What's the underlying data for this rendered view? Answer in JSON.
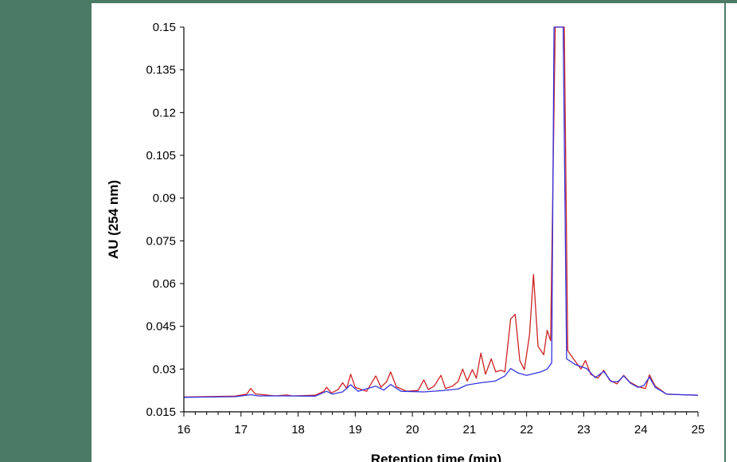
{
  "chart_data": {
    "type": "line",
    "xlabel": "Retention time  (min)",
    "ylabel": "AU (254 nm)",
    "xlim": [
      16,
      25
    ],
    "ylim": [
      0.015,
      0.15
    ],
    "x_ticks": [
      16,
      17,
      18,
      19,
      20,
      21,
      22,
      23,
      24,
      25
    ],
    "y_ticks": [
      0.015,
      0.03,
      0.045,
      0.06,
      0.075,
      0.09,
      0.105,
      0.12,
      0.135,
      0.15
    ],
    "grid": false,
    "legend": "none",
    "colors": {
      "red_series": "#cc2222",
      "blue_series": "#3333e0",
      "frame": "#4b7a66"
    },
    "series": [
      {
        "color": "#cc2222",
        "points": [
          [
            16.0,
            0.0202
          ],
          [
            16.9,
            0.0205
          ],
          [
            17.1,
            0.0212
          ],
          [
            17.17,
            0.0232
          ],
          [
            17.25,
            0.0213
          ],
          [
            17.6,
            0.0206
          ],
          [
            17.8,
            0.0209
          ],
          [
            17.9,
            0.0206
          ],
          [
            18.3,
            0.0208
          ],
          [
            18.45,
            0.0222
          ],
          [
            18.5,
            0.0236
          ],
          [
            18.58,
            0.0216
          ],
          [
            18.7,
            0.0228
          ],
          [
            18.78,
            0.0252
          ],
          [
            18.85,
            0.0232
          ],
          [
            18.92,
            0.0282
          ],
          [
            19.0,
            0.0236
          ],
          [
            19.2,
            0.0222
          ],
          [
            19.36,
            0.0276
          ],
          [
            19.45,
            0.0236
          ],
          [
            19.55,
            0.0256
          ],
          [
            19.62,
            0.029
          ],
          [
            19.72,
            0.0238
          ],
          [
            19.9,
            0.0222
          ],
          [
            20.1,
            0.0225
          ],
          [
            20.2,
            0.0262
          ],
          [
            20.28,
            0.0228
          ],
          [
            20.38,
            0.024
          ],
          [
            20.5,
            0.0278
          ],
          [
            20.58,
            0.0232
          ],
          [
            20.7,
            0.024
          ],
          [
            20.8,
            0.0256
          ],
          [
            20.88,
            0.03
          ],
          [
            20.96,
            0.0258
          ],
          [
            21.05,
            0.0298
          ],
          [
            21.12,
            0.0268
          ],
          [
            21.2,
            0.0356
          ],
          [
            21.28,
            0.0282
          ],
          [
            21.38,
            0.0336
          ],
          [
            21.46,
            0.029
          ],
          [
            21.55,
            0.0296
          ],
          [
            21.62,
            0.029
          ],
          [
            21.72,
            0.0476
          ],
          [
            21.8,
            0.0492
          ],
          [
            21.88,
            0.033
          ],
          [
            21.96,
            0.0298
          ],
          [
            22.05,
            0.042
          ],
          [
            22.12,
            0.0632
          ],
          [
            22.2,
            0.038
          ],
          [
            22.3,
            0.035
          ],
          [
            22.36,
            0.0436
          ],
          [
            22.42,
            0.04
          ],
          [
            22.5,
            0.15
          ],
          [
            22.58,
            0.15
          ],
          [
            22.66,
            0.15
          ],
          [
            22.72,
            0.0365
          ],
          [
            22.82,
            0.0336
          ],
          [
            22.95,
            0.03
          ],
          [
            23.03,
            0.033
          ],
          [
            23.12,
            0.0282
          ],
          [
            23.25,
            0.0268
          ],
          [
            23.35,
            0.0296
          ],
          [
            23.45,
            0.0262
          ],
          [
            23.58,
            0.0248
          ],
          [
            23.7,
            0.0278
          ],
          [
            23.8,
            0.0255
          ],
          [
            23.95,
            0.0238
          ],
          [
            24.08,
            0.0232
          ],
          [
            24.15,
            0.028
          ],
          [
            24.25,
            0.024
          ],
          [
            24.45,
            0.0212
          ],
          [
            24.7,
            0.021
          ],
          [
            25.0,
            0.0208
          ]
        ]
      },
      {
        "color": "#3333e0",
        "points": [
          [
            16.0,
            0.0201
          ],
          [
            16.9,
            0.0203
          ],
          [
            17.17,
            0.021
          ],
          [
            17.3,
            0.0206
          ],
          [
            17.8,
            0.0206
          ],
          [
            18.3,
            0.0205
          ],
          [
            18.5,
            0.0222
          ],
          [
            18.6,
            0.0212
          ],
          [
            18.78,
            0.022
          ],
          [
            18.92,
            0.0245
          ],
          [
            19.05,
            0.0222
          ],
          [
            19.36,
            0.024
          ],
          [
            19.5,
            0.0226
          ],
          [
            19.62,
            0.0246
          ],
          [
            19.8,
            0.0222
          ],
          [
            20.2,
            0.022
          ],
          [
            20.5,
            0.0224
          ],
          [
            20.8,
            0.023
          ],
          [
            20.95,
            0.0244
          ],
          [
            21.2,
            0.0252
          ],
          [
            21.45,
            0.0258
          ],
          [
            21.62,
            0.0276
          ],
          [
            21.72,
            0.0302
          ],
          [
            21.85,
            0.0286
          ],
          [
            22.0,
            0.0278
          ],
          [
            22.12,
            0.0284
          ],
          [
            22.25,
            0.029
          ],
          [
            22.36,
            0.03
          ],
          [
            22.44,
            0.0322
          ],
          [
            22.48,
            0.15
          ],
          [
            22.56,
            0.15
          ],
          [
            22.64,
            0.15
          ],
          [
            22.7,
            0.0336
          ],
          [
            22.85,
            0.0316
          ],
          [
            23.05,
            0.0302
          ],
          [
            23.2,
            0.027
          ],
          [
            23.35,
            0.0292
          ],
          [
            23.48,
            0.0256
          ],
          [
            23.6,
            0.0256
          ],
          [
            23.7,
            0.0276
          ],
          [
            23.82,
            0.025
          ],
          [
            23.95,
            0.0236
          ],
          [
            24.05,
            0.0242
          ],
          [
            24.15,
            0.0272
          ],
          [
            24.25,
            0.0236
          ],
          [
            24.45,
            0.0212
          ],
          [
            24.7,
            0.021
          ],
          [
            25.0,
            0.0208
          ]
        ]
      }
    ]
  }
}
